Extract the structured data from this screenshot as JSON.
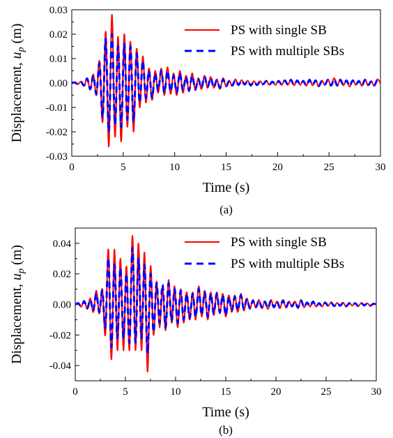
{
  "figure": {
    "panels": [
      {
        "caption": "(a)"
      },
      {
        "caption": "(b)"
      }
    ]
  },
  "chart_data": [
    {
      "type": "line",
      "xlabel": "Time (s)",
      "ylabel": "Displacement, u_p (m)",
      "ylabel_parts": {
        "main": "Displacement, ",
        "var": "u",
        "sub": "p",
        "unit": " (m)"
      },
      "xlim": [
        0,
        30
      ],
      "ylim": [
        -0.03,
        0.03
      ],
      "xticks": [
        0,
        5,
        10,
        15,
        20,
        25,
        30
      ],
      "yticks": [
        -0.03,
        -0.02,
        -0.01,
        0.0,
        0.01,
        0.02,
        0.03
      ],
      "ytick_labels": [
        "-0.03",
        "-0.02",
        "-0.01",
        "0.00",
        "0.01",
        "0.02",
        "0.03"
      ],
      "grid": false,
      "legend_position": "top-right",
      "series": [
        {
          "name": "PS with single SB",
          "color": "#ff0000",
          "style": "solid",
          "x": [
            0,
            0.3,
            0.6,
            0.9,
            1.2,
            1.5,
            1.8,
            2.1,
            2.4,
            2.7,
            3.0,
            3.3,
            3.6,
            3.9,
            4.2,
            4.5,
            4.8,
            5.1,
            5.4,
            5.7,
            6.0,
            6.3,
            6.6,
            6.9,
            7.2,
            7.5,
            7.8,
            8.1,
            8.4,
            8.7,
            9.0,
            9.3,
            9.6,
            9.9,
            10.2,
            10.5,
            10.8,
            11.1,
            11.4,
            11.7,
            12.0,
            12.3,
            12.6,
            12.9,
            13.2,
            13.5,
            13.8,
            14.1,
            14.4,
            14.7,
            15.0,
            15.3,
            15.6,
            15.9,
            16.2,
            16.5,
            16.8,
            17.1,
            17.4,
            17.7,
            18.0,
            18.3,
            18.6,
            18.9,
            19.2,
            19.5,
            19.8,
            20.1,
            20.4,
            20.7,
            21.0,
            21.3,
            21.6,
            21.9,
            22.2,
            22.5,
            22.8,
            23.1,
            23.4,
            23.7,
            24.0,
            24.3,
            24.6,
            24.9,
            25.2,
            25.5,
            25.8,
            26.1,
            26.4,
            26.7,
            27.0,
            27.3,
            27.6,
            27.9,
            28.2,
            28.5,
            28.8,
            29.1,
            29.4,
            29.7,
            30.0
          ],
          "y": [
            0.0,
            0.0003,
            -0.0005,
            0.0006,
            -0.0012,
            0.002,
            -0.0028,
            0.0035,
            -0.005,
            0.009,
            -0.016,
            0.021,
            -0.026,
            0.028,
            -0.022,
            0.019,
            -0.024,
            0.02,
            -0.018,
            0.017,
            -0.02,
            0.014,
            -0.01,
            0.011,
            -0.008,
            0.006,
            -0.007,
            0.005,
            -0.004,
            0.006,
            -0.005,
            0.0065,
            -0.0045,
            0.004,
            -0.005,
            0.005,
            -0.004,
            0.003,
            -0.0035,
            0.004,
            -0.003,
            0.002,
            -0.0025,
            0.003,
            -0.002,
            0.0025,
            -0.002,
            0.0015,
            -0.0025,
            0.002,
            -0.0015,
            0.001,
            -0.0012,
            0.0015,
            -0.001,
            0.0012,
            -0.0008,
            0.001,
            -0.0012,
            0.0008,
            -0.001,
            0.0008,
            -0.0006,
            0.001,
            -0.0008,
            0.0006,
            -0.0008,
            0.001,
            -0.0008,
            0.0012,
            -0.0008,
            0.0015,
            -0.001,
            0.0012,
            -0.0008,
            0.001,
            -0.0012,
            0.0015,
            -0.001,
            0.0012,
            -0.0015,
            0.001,
            -0.0008,
            0.0015,
            -0.0012,
            0.002,
            -0.0012,
            0.0015,
            -0.001,
            0.0012,
            -0.0015,
            0.0012,
            -0.0008,
            0.001,
            -0.0012,
            0.0015,
            -0.001,
            0.0008,
            -0.0012,
            0.0015,
            0.0
          ]
        },
        {
          "name": "PS with multiple SBs",
          "color": "#0000ff",
          "style": "dashed",
          "x": [
            0,
            0.3,
            0.6,
            0.9,
            1.2,
            1.5,
            1.8,
            2.1,
            2.4,
            2.7,
            3.0,
            3.3,
            3.6,
            3.9,
            4.2,
            4.5,
            4.8,
            5.1,
            5.4,
            5.7,
            6.0,
            6.3,
            6.6,
            6.9,
            7.2,
            7.5,
            7.8,
            8.1,
            8.4,
            8.7,
            9.0,
            9.3,
            9.6,
            9.9,
            10.2,
            10.5,
            10.8,
            11.1,
            11.4,
            11.7,
            12.0,
            12.3,
            12.6,
            12.9,
            13.2,
            13.5,
            13.8,
            14.1,
            14.4,
            14.7,
            15.0,
            15.3,
            15.6,
            15.9,
            16.2,
            16.5,
            16.8,
            17.1,
            17.4,
            17.7,
            18.0,
            18.3,
            18.6,
            18.9,
            19.2,
            19.5,
            19.8,
            20.1,
            20.4,
            20.7,
            21.0,
            21.3,
            21.6,
            21.9,
            22.2,
            22.5,
            22.8,
            23.1,
            23.4,
            23.7,
            24.0,
            24.3,
            24.6,
            24.9,
            25.2,
            25.5,
            25.8,
            26.1,
            26.4,
            26.7,
            27.0,
            27.3,
            27.6,
            27.9,
            28.2,
            28.5,
            28.8,
            29.1,
            29.4,
            29.7,
            30.0
          ],
          "y": [
            0.0,
            0.0002,
            -0.0004,
            0.0005,
            -0.001,
            0.0018,
            -0.0025,
            0.003,
            -0.0045,
            0.008,
            -0.014,
            0.018,
            -0.02,
            0.02,
            -0.017,
            0.015,
            -0.018,
            0.016,
            -0.015,
            0.015,
            -0.016,
            0.012,
            -0.008,
            0.009,
            -0.006,
            0.005,
            -0.006,
            0.004,
            -0.003,
            0.005,
            -0.004,
            0.005,
            -0.0035,
            0.003,
            -0.004,
            0.004,
            -0.003,
            0.0025,
            -0.003,
            0.003,
            -0.0025,
            0.0015,
            -0.002,
            0.0025,
            -0.0015,
            0.002,
            -0.0018,
            0.0012,
            -0.002,
            0.0015,
            -0.0012,
            0.0008,
            -0.001,
            0.0012,
            -0.0008,
            0.001,
            -0.0006,
            0.0008,
            -0.001,
            0.0006,
            -0.0008,
            0.0006,
            -0.0005,
            0.0008,
            -0.0006,
            0.0005,
            -0.0006,
            0.0008,
            -0.0006,
            0.001,
            -0.0006,
            0.0012,
            -0.0008,
            0.001,
            -0.0006,
            0.0008,
            -0.001,
            0.0012,
            -0.0008,
            0.001,
            -0.0012,
            0.0008,
            -0.0006,
            0.0012,
            -0.001,
            0.0015,
            -0.001,
            0.0012,
            -0.0008,
            0.001,
            -0.0012,
            0.001,
            -0.0006,
            0.0008,
            -0.001,
            0.0012,
            -0.0008,
            0.0006,
            -0.001,
            0.0012,
            0.0
          ]
        }
      ]
    },
    {
      "type": "line",
      "xlabel": "Time (s)",
      "ylabel": "Displacement, u_p (m)",
      "ylabel_parts": {
        "main": "Displacement, ",
        "var": "u",
        "sub": "p",
        "unit": " (m)"
      },
      "xlim": [
        0,
        30
      ],
      "ylim": [
        -0.05,
        0.05
      ],
      "xticks": [
        0,
        5,
        10,
        15,
        20,
        25,
        30
      ],
      "yticks": [
        -0.04,
        -0.02,
        0.0,
        0.02,
        0.04
      ],
      "ytick_labels": [
        "-0.04",
        "-0.02",
        "0.00",
        "0.02",
        "0.04"
      ],
      "grid": false,
      "legend_position": "top-right",
      "series": [
        {
          "name": "PS with single SB",
          "color": "#ff0000",
          "style": "solid",
          "x": [
            0,
            0.3,
            0.6,
            0.9,
            1.2,
            1.5,
            1.8,
            2.1,
            2.4,
            2.7,
            3.0,
            3.3,
            3.6,
            3.9,
            4.2,
            4.5,
            4.8,
            5.1,
            5.4,
            5.7,
            6.0,
            6.3,
            6.6,
            6.9,
            7.2,
            7.5,
            7.8,
            8.1,
            8.4,
            8.7,
            9.0,
            9.3,
            9.6,
            9.9,
            10.2,
            10.5,
            10.8,
            11.1,
            11.4,
            11.7,
            12.0,
            12.3,
            12.6,
            12.9,
            13.2,
            13.5,
            13.8,
            14.1,
            14.4,
            14.7,
            15.0,
            15.3,
            15.6,
            15.9,
            16.2,
            16.5,
            16.8,
            17.1,
            17.4,
            17.7,
            18.0,
            18.3,
            18.6,
            18.9,
            19.2,
            19.5,
            19.8,
            20.1,
            20.4,
            20.7,
            21.0,
            21.3,
            21.6,
            21.9,
            22.2,
            22.5,
            22.8,
            23.1,
            23.4,
            23.7,
            24.0,
            24.3,
            24.6,
            24.9,
            25.2,
            25.5,
            25.8,
            26.1,
            26.4,
            26.7,
            27.0,
            27.3,
            27.6,
            27.9,
            28.2,
            28.5,
            28.8,
            29.1,
            29.4,
            29.7,
            30.0
          ],
          "y": [
            0.0,
            0.001,
            -0.0015,
            0.0025,
            -0.003,
            0.004,
            -0.005,
            0.009,
            -0.006,
            0.01,
            -0.02,
            0.036,
            -0.036,
            0.036,
            -0.03,
            0.03,
            -0.03,
            0.025,
            -0.03,
            0.045,
            -0.03,
            0.04,
            -0.03,
            0.034,
            -0.044,
            0.025,
            -0.02,
            0.015,
            -0.015,
            0.012,
            -0.017,
            0.016,
            -0.012,
            0.012,
            -0.015,
            0.01,
            -0.012,
            0.008,
            -0.01,
            0.008,
            -0.01,
            0.012,
            -0.008,
            0.009,
            -0.01,
            0.008,
            -0.007,
            0.008,
            -0.006,
            0.007,
            -0.008,
            0.006,
            -0.005,
            0.006,
            -0.005,
            0.007,
            -0.004,
            0.004,
            -0.003,
            0.003,
            -0.002,
            0.003,
            -0.0025,
            0.002,
            -0.003,
            0.003,
            -0.002,
            0.002,
            -0.0025,
            0.003,
            -0.002,
            0.002,
            -0.0015,
            0.002,
            -0.0025,
            0.003,
            -0.002,
            0.0015,
            -0.0015,
            0.002,
            -0.0015,
            0.001,
            -0.0015,
            0.0015,
            -0.001,
            0.0015,
            -0.0012,
            0.001,
            -0.001,
            0.0012,
            -0.0015,
            0.001,
            -0.0008,
            0.001,
            -0.0012,
            0.001,
            -0.0008,
            0.0008,
            -0.001,
            0.0005,
            0.0
          ]
        },
        {
          "name": "PS with multiple SBs",
          "color": "#0000ff",
          "style": "dashed",
          "x": [
            0,
            0.3,
            0.6,
            0.9,
            1.2,
            1.5,
            1.8,
            2.1,
            2.4,
            2.7,
            3.0,
            3.3,
            3.6,
            3.9,
            4.2,
            4.5,
            4.8,
            5.1,
            5.4,
            5.7,
            6.0,
            6.3,
            6.6,
            6.9,
            7.2,
            7.5,
            7.8,
            8.1,
            8.4,
            8.7,
            9.0,
            9.3,
            9.6,
            9.9,
            10.2,
            10.5,
            10.8,
            11.1,
            11.4,
            11.7,
            12.0,
            12.3,
            12.6,
            12.9,
            13.2,
            13.5,
            13.8,
            14.1,
            14.4,
            14.7,
            15.0,
            15.3,
            15.6,
            15.9,
            16.2,
            16.5,
            16.8,
            17.1,
            17.4,
            17.7,
            18.0,
            18.3,
            18.6,
            18.9,
            19.2,
            19.5,
            19.8,
            20.1,
            20.4,
            20.7,
            21.0,
            21.3,
            21.6,
            21.9,
            22.2,
            22.5,
            22.8,
            23.1,
            23.4,
            23.7,
            24.0,
            24.3,
            24.6,
            24.9,
            25.2,
            25.5,
            25.8,
            26.1,
            26.4,
            26.7,
            27.0,
            27.3,
            27.6,
            27.9,
            28.2,
            28.5,
            28.8,
            29.1,
            29.4,
            29.7,
            30.0
          ],
          "y": [
            0.0,
            0.0008,
            -0.0012,
            0.002,
            -0.0025,
            0.003,
            -0.004,
            0.007,
            -0.005,
            0.009,
            -0.015,
            0.03,
            -0.028,
            0.026,
            -0.022,
            0.024,
            -0.022,
            0.02,
            -0.025,
            0.037,
            -0.025,
            0.03,
            -0.022,
            0.026,
            -0.032,
            0.02,
            -0.018,
            0.014,
            -0.012,
            0.013,
            -0.015,
            0.014,
            -0.011,
            0.01,
            -0.012,
            0.009,
            -0.01,
            0.007,
            -0.009,
            0.007,
            -0.008,
            0.01,
            -0.007,
            0.008,
            -0.008,
            0.007,
            -0.006,
            0.007,
            -0.005,
            0.006,
            -0.007,
            0.005,
            -0.004,
            0.005,
            -0.004,
            0.006,
            -0.003,
            0.0035,
            -0.0025,
            0.0025,
            -0.0018,
            0.0025,
            -0.002,
            0.0018,
            -0.0025,
            0.0025,
            -0.0018,
            0.0018,
            -0.002,
            0.0025,
            -0.0018,
            0.0018,
            -0.0012,
            0.0018,
            -0.002,
            0.0025,
            -0.0018,
            0.0012,
            -0.0012,
            0.0018,
            -0.0012,
            0.0008,
            -0.0012,
            0.0012,
            -0.0008,
            0.0012,
            -0.001,
            0.0008,
            -0.0008,
            0.001,
            -0.0012,
            0.0008,
            -0.0006,
            0.0008,
            -0.001,
            0.0008,
            -0.0006,
            0.0006,
            -0.0008,
            0.0004,
            0.0
          ]
        }
      ]
    }
  ]
}
